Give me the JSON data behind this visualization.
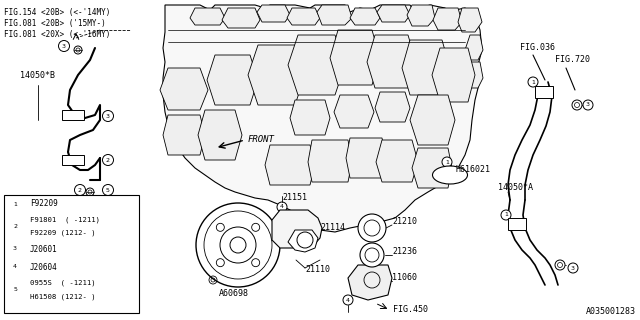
{
  "bg_color": "#ffffff",
  "line_color": "#000000",
  "diagram_ref": "A035001283",
  "fig_refs_top": [
    "FIG.154 <20B> (<-'14MY)",
    "FIG.081 <20B> ('15MY-)",
    "FIG.081 <20X> (<-'16MY)"
  ],
  "legend_rows": [
    {
      "num": "1",
      "parts": [
        "F92209"
      ]
    },
    {
      "num": "2",
      "parts": [
        "F91801  ( -1211)",
        "F92209 (1212- )"
      ]
    },
    {
      "num": "3",
      "parts": [
        "J20601"
      ]
    },
    {
      "num": "4",
      "parts": [
        "J20604"
      ]
    },
    {
      "num": "5",
      "parts": [
        "0955S  ( -1211)",
        "H61508 (1212- )"
      ]
    }
  ]
}
